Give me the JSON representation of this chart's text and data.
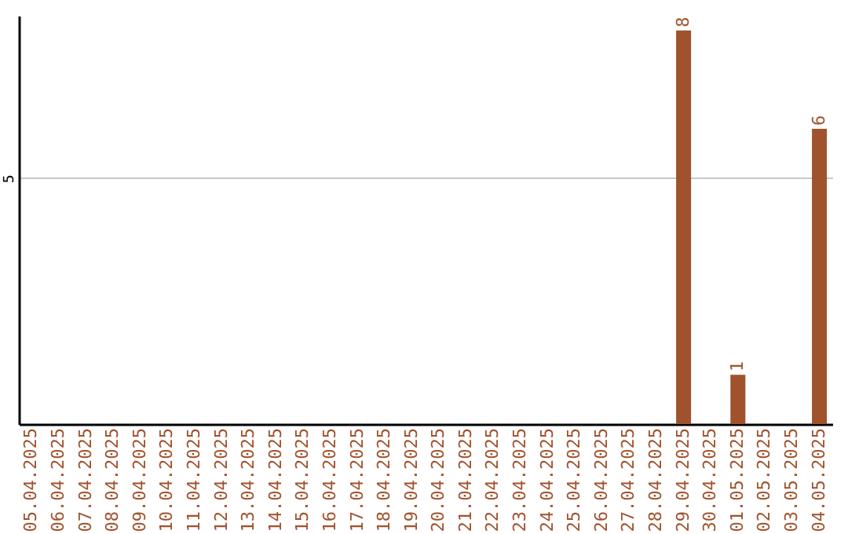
{
  "chart_data": {
    "type": "bar",
    "categories": [
      "05.04.2025",
      "06.04.2025",
      "07.04.2025",
      "08.04.2025",
      "09.04.2025",
      "10.04.2025",
      "11.04.2025",
      "12.04.2025",
      "13.04.2025",
      "14.04.2025",
      "15.04.2025",
      "16.04.2025",
      "17.04.2025",
      "18.04.2025",
      "19.04.2025",
      "20.04.2025",
      "21.04.2025",
      "22.04.2025",
      "23.04.2025",
      "24.04.2025",
      "25.04.2025",
      "26.04.2025",
      "27.04.2025",
      "28.04.2025",
      "29.04.2025",
      "30.04.2025",
      "01.05.2025",
      "02.05.2025",
      "03.05.2025",
      "04.05.2025"
    ],
    "values": [
      null,
      null,
      null,
      null,
      null,
      null,
      null,
      null,
      null,
      null,
      null,
      null,
      null,
      null,
      null,
      null,
      null,
      null,
      null,
      null,
      null,
      null,
      null,
      null,
      8,
      null,
      1,
      null,
      null,
      6
    ],
    "color": "#a0522d",
    "ylim": [
      0,
      8.3
    ],
    "yticks": [
      5
    ],
    "grid": "y",
    "data_labels": true
  }
}
